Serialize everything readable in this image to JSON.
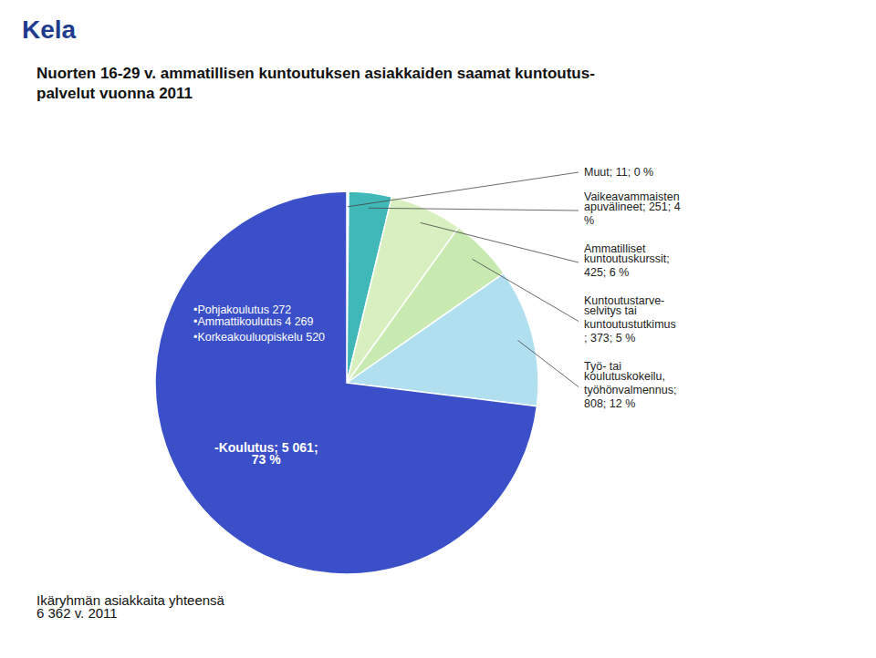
{
  "chart_data": {
    "type": "pie",
    "title": "Nuorten 16-29 v. ammatillisen kuntoutuksen asiakkaiden saamat kuntoutus-\npalvelut vuonna 2011",
    "values": [
      11,
      251,
      425,
      373,
      808,
      5061
    ],
    "value_labels": [
      "Muut; 11; 0 %",
      "Vaikeavammaisten\napuvälineet; 251; 4\n%",
      "Ammatilliset\nkuntoutuskurssit;\n425; 6 %",
      "Kuntoutustarve-\nselvitys tai\nkuntoutustutkimus\n; 373; 5 %",
      "Työ- tai\nkoulutuskokeilu,\ntyöhönvalmennus;\n808; 12 %",
      "-Koulutus; 5 061;\n73 %"
    ],
    "colors": [
      "#A8D0E8",
      "#40B8B8",
      "#D8F0C0",
      "#C8EAB0",
      "#B0E0F0",
      "#3B4FC8"
    ],
    "data_labels": true,
    "annotations": [
      "•Pohjakoulutus 272\n•Ammattikoulutus 4 269\n•Korkeakouluopiskelu 520",
      "Ikäryhmän asiakkaita yhteensä\n6 362 v. 2011",
      "Kela"
    ]
  }
}
